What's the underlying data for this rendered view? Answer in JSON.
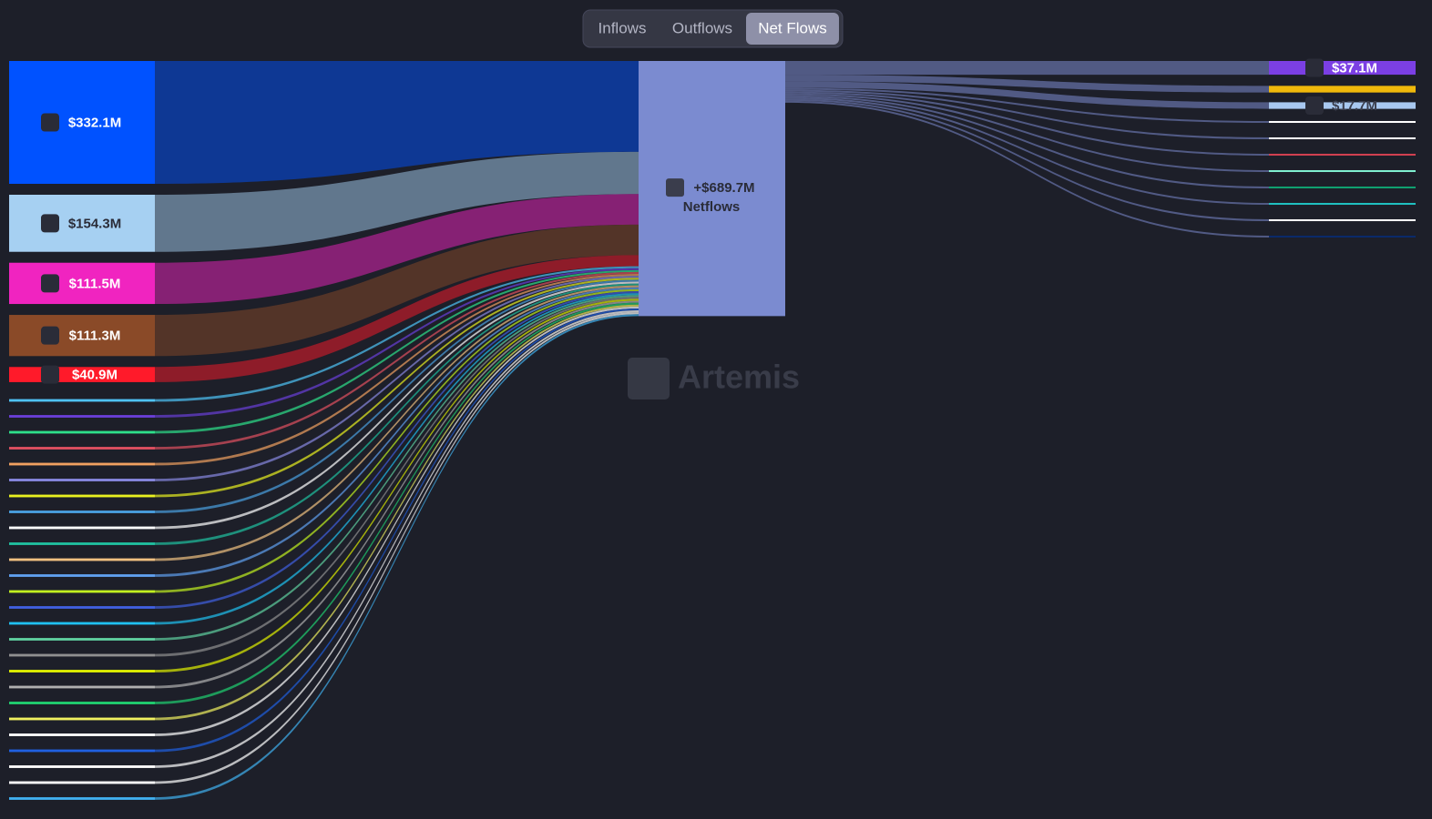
{
  "tabs": [
    "Inflows",
    "Outflows",
    "Net Flows"
  ],
  "active_tab": 2,
  "watermark": "Artemis",
  "chart_data": {
    "type": "sankey",
    "sources": {
      "values": [
        332.1,
        154.3,
        111.5,
        111.3,
        40.9,
        7,
        7,
        7,
        7,
        7,
        7,
        7,
        7,
        7,
        7,
        7,
        7,
        7,
        7,
        7,
        7,
        7,
        7,
        7,
        7,
        7,
        7,
        7,
        7,
        7,
        7
      ],
      "value_labels": [
        "$332.1M",
        "$154.3M",
        "$111.5M",
        "$111.3M",
        "$40.9M",
        null,
        null,
        null,
        null,
        null,
        null,
        null,
        null,
        null,
        null,
        null,
        null,
        null,
        null,
        null,
        null,
        null,
        null,
        null,
        null,
        null,
        null,
        null,
        null,
        null,
        null
      ],
      "colors": [
        "#0052ff",
        "#a6d0f2",
        "#f024c0",
        "#8a4a28",
        "#ff1a2a",
        "#4fc3f7",
        "#6a3fd8",
        "#2ee08a",
        "#e05060",
        "#f0a060",
        "#8888e0",
        "#e8f020",
        "#4aa0e0",
        "#ffffff",
        "#20c0a0",
        "#f0c080",
        "#60a0f0",
        "#c0f020",
        "#4060e0",
        "#20c0f0",
        "#60d0a0",
        "#909090",
        "#e0f000",
        "#b0b0b0",
        "#20d070",
        "#f0f060",
        "#ffffff",
        "#2060e0",
        "#ffffff",
        "#ffffff",
        "#40b0f0"
      ]
    },
    "target": {
      "value": 689.7,
      "value_label": "+$689.7M",
      "label": "Netflows",
      "color": "#7b8bd0"
    },
    "outflows": {
      "values": [
        37.1,
        18,
        17.7,
        5,
        5,
        5,
        5,
        5,
        5,
        5,
        5
      ],
      "value_labels": [
        "$37.1M",
        null,
        "$17.7M",
        null,
        null,
        null,
        null,
        null,
        null,
        null,
        null
      ],
      "colors": [
        "#7b3fe4",
        "#f0b90b",
        "#a8c8f0",
        "#ffffff",
        "#ffffff",
        "#d04050",
        "#80f0d0",
        "#10a070",
        "#20c0c0",
        "#ffffff",
        "#0a2a6a"
      ]
    }
  }
}
